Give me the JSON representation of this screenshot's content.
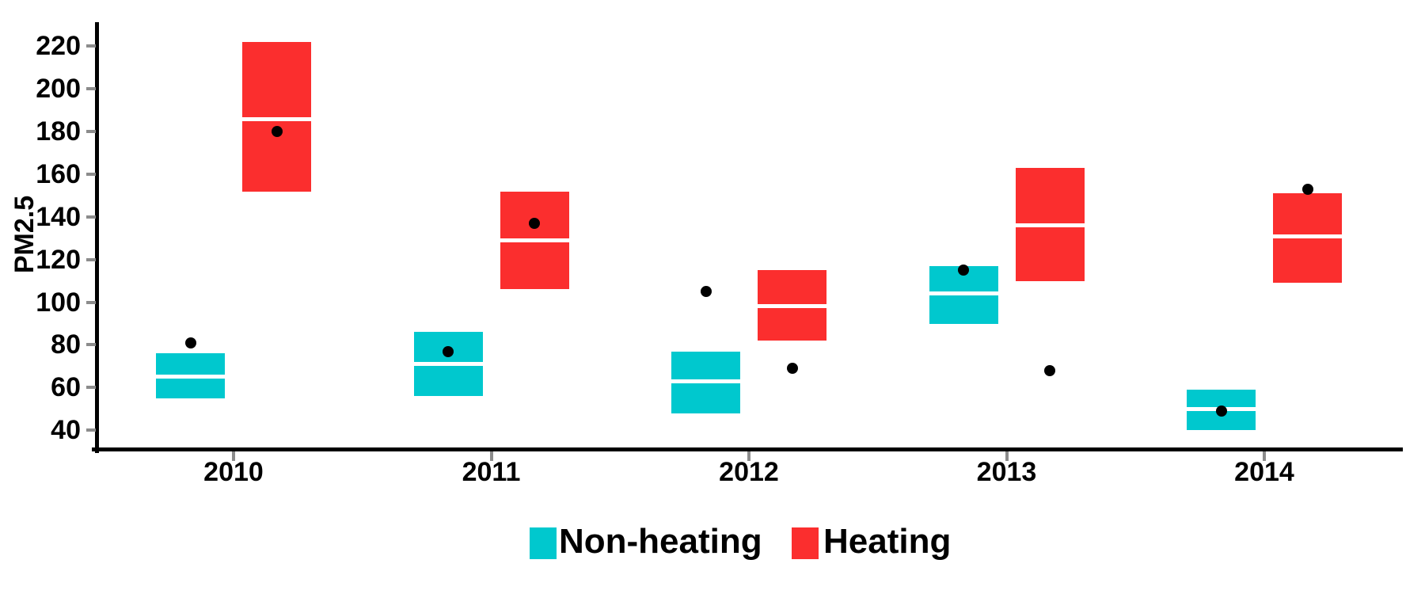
{
  "chart_data": {
    "type": "crossbar-boxplot",
    "title": "",
    "xlabel": "",
    "ylabel": "PM2.5",
    "x_categories": [
      "2010",
      "2011",
      "2012",
      "2013",
      "2014"
    ],
    "y_ticks": [
      40,
      60,
      80,
      100,
      120,
      140,
      160,
      180,
      200,
      220
    ],
    "ylim": [
      33,
      228
    ],
    "grid": false,
    "legend_position": "bottom",
    "legend": [
      {
        "label": "Non-heating",
        "color": "#00c8ce"
      },
      {
        "label": "Heating",
        "color": "#fb2e2e"
      }
    ],
    "series": [
      {
        "name": "Non-heating",
        "color": "#00c8ce",
        "boxes": [
          {
            "x": "2010",
            "lower": 55,
            "median": 65,
            "upper": 76,
            "mean": 81
          },
          {
            "x": "2011",
            "lower": 56,
            "median": 71,
            "upper": 86,
            "mean": 77
          },
          {
            "x": "2012",
            "lower": 48,
            "median": 63,
            "upper": 77,
            "mean": 105
          },
          {
            "x": "2013",
            "lower": 90,
            "median": 104,
            "upper": 117,
            "mean": 115
          },
          {
            "x": "2014",
            "lower": 40,
            "median": 50,
            "upper": 59,
            "mean": 49
          }
        ]
      },
      {
        "name": "Heating",
        "color": "#fb2e2e",
        "boxes": [
          {
            "x": "2010",
            "lower": 152,
            "median": 186,
            "upper": 222,
            "mean": 180
          },
          {
            "x": "2011",
            "lower": 106,
            "median": 129,
            "upper": 152,
            "mean": 137
          },
          {
            "x": "2012",
            "lower": 82,
            "median": 98,
            "upper": 115,
            "mean": 69
          },
          {
            "x": "2013",
            "lower": 110,
            "median": 136,
            "upper": 163,
            "mean": 68
          },
          {
            "x": "2014",
            "lower": 109,
            "median": 131,
            "upper": 151,
            "mean": 153
          }
        ]
      }
    ]
  }
}
